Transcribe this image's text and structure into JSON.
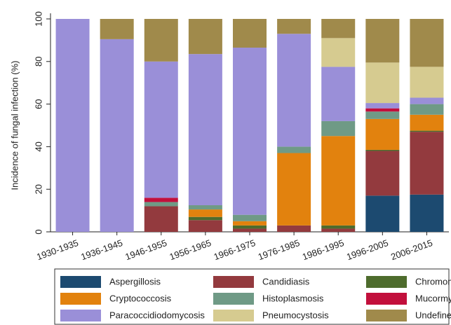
{
  "chart_data": {
    "type": "stacked_bar",
    "y_label": "Incidence of fungal infection (%)",
    "categories": [
      "1930-1935",
      "1936-1945",
      "1946-1955",
      "1956-1965",
      "1966-1975",
      "1976-1985",
      "1986-1995",
      "1996-2005",
      "2006-2015"
    ],
    "series": [
      {
        "name": "Aspergillosis",
        "color": "#1c4a70",
        "values": [
          0,
          0,
          0,
          0,
          0,
          0,
          0,
          17,
          17.5
        ]
      },
      {
        "name": "Candidiasis",
        "color": "#933a3e",
        "values": [
          0,
          0,
          12,
          5.5,
          1.5,
          3,
          1.5,
          21,
          29.5
        ]
      },
      {
        "name": "Chromomycosis",
        "color": "#4e6c2d",
        "values": [
          0,
          0,
          0,
          1.5,
          1.5,
          0,
          1.5,
          0.5,
          0.5
        ]
      },
      {
        "name": "Cryptococcosis",
        "color": "#e2820e",
        "values": [
          0,
          0,
          0,
          3.5,
          2,
          34,
          42,
          14.5,
          7.5
        ]
      },
      {
        "name": "Histoplasmosis",
        "color": "#6f9a86",
        "values": [
          0,
          0,
          2,
          2,
          3,
          3,
          7,
          3.5,
          5
        ]
      },
      {
        "name": "Mucormycosis",
        "color": "#c2103c",
        "values": [
          0,
          0,
          2,
          0,
          0,
          0,
          0,
          1.5,
          0
        ]
      },
      {
        "name": "Paracoccidiodomycosis",
        "color": "#9a8fd8",
        "values": [
          100,
          90.5,
          64,
          71,
          78.5,
          53,
          25.5,
          2.5,
          3
        ]
      },
      {
        "name": "Pneumocystosis",
        "color": "#d6cb90",
        "values": [
          0,
          0,
          0,
          0,
          0,
          0,
          13.5,
          19,
          14.5
        ]
      },
      {
        "name": "Undefined",
        "color": "#a08a4b",
        "values": [
          0,
          9.5,
          20,
          16.5,
          13.5,
          7,
          9,
          20.5,
          22.5
        ]
      }
    ],
    "ylim": [
      0,
      100
    ],
    "yticks": [
      0,
      20,
      40,
      60,
      80,
      100
    ],
    "legend": "bottom"
  }
}
